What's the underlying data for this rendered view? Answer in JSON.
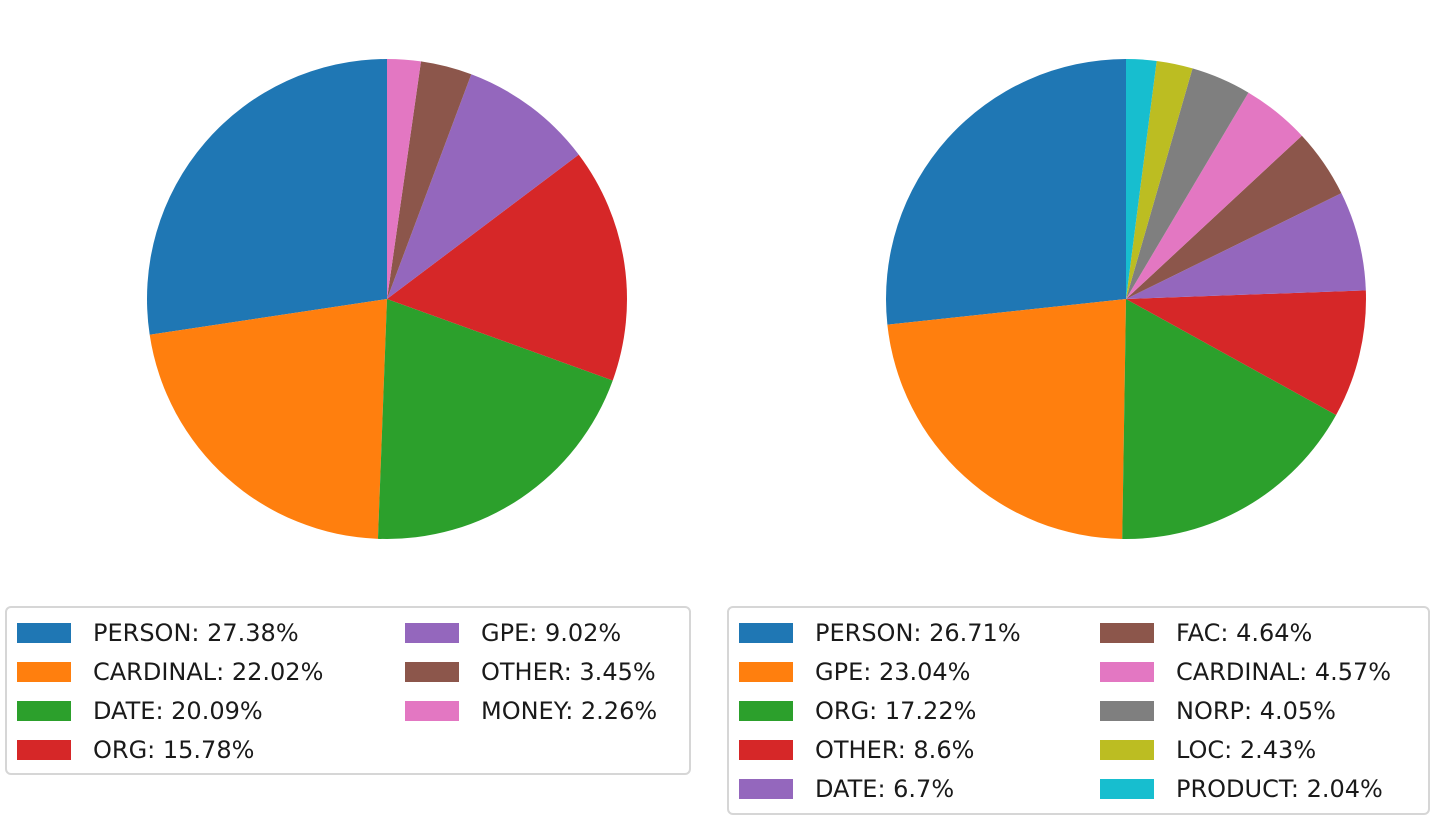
{
  "chart_data": [
    {
      "type": "pie",
      "title": "",
      "start_angle_deg": 90,
      "direction": "counterclockwise",
      "legend_location": "lower-center",
      "slices": [
        {
          "label": "PERSON",
          "value": 27.38,
          "legend": "PERSON: 27.38%",
          "color": "#1f77b4"
        },
        {
          "label": "CARDINAL",
          "value": 22.02,
          "legend": "CARDINAL: 22.02%",
          "color": "#ff7f0e"
        },
        {
          "label": "DATE",
          "value": 20.09,
          "legend": "DATE: 20.09%",
          "color": "#2ca02c"
        },
        {
          "label": "ORG",
          "value": 15.78,
          "legend": "ORG: 15.78%",
          "color": "#d62728"
        },
        {
          "label": "GPE",
          "value": 9.02,
          "legend": "GPE: 9.02%",
          "color": "#9467bd"
        },
        {
          "label": "OTHER",
          "value": 3.45,
          "legend": "OTHER: 3.45%",
          "color": "#8c564b"
        },
        {
          "label": "MONEY",
          "value": 2.26,
          "legend": "MONEY: 2.26%",
          "color": "#e377c2"
        }
      ]
    },
    {
      "type": "pie",
      "title": "",
      "start_angle_deg": 90,
      "direction": "counterclockwise",
      "legend_location": "lower-center",
      "slices": [
        {
          "label": "PERSON",
          "value": 26.71,
          "legend": "PERSON: 26.71%",
          "color": "#1f77b4"
        },
        {
          "label": "GPE",
          "value": 23.04,
          "legend": "GPE: 23.04%",
          "color": "#ff7f0e"
        },
        {
          "label": "ORG",
          "value": 17.22,
          "legend": "ORG: 17.22%",
          "color": "#2ca02c"
        },
        {
          "label": "OTHER",
          "value": 8.6,
          "legend": "OTHER: 8.6%",
          "color": "#d62728"
        },
        {
          "label": "DATE",
          "value": 6.7,
          "legend": "DATE: 6.7%",
          "color": "#9467bd"
        },
        {
          "label": "FAC",
          "value": 4.64,
          "legend": "FAC: 4.64%",
          "color": "#8c564b"
        },
        {
          "label": "CARDINAL",
          "value": 4.57,
          "legend": "CARDINAL: 4.57%",
          "color": "#e377c2"
        },
        {
          "label": "NORP",
          "value": 4.05,
          "legend": "NORP: 4.05%",
          "color": "#7f7f7f"
        },
        {
          "label": "LOC",
          "value": 2.43,
          "legend": "LOC: 2.43%",
          "color": "#bcbd22"
        },
        {
          "label": "PRODUCT",
          "value": 2.04,
          "legend": "PRODUCT: 2.04%",
          "color": "#17becf"
        }
      ]
    }
  ]
}
